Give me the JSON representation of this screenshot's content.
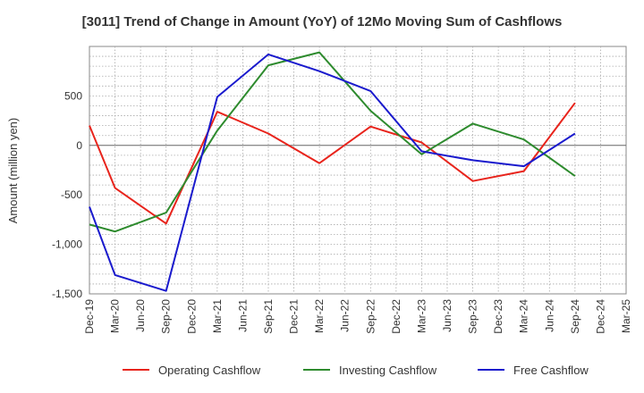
{
  "chart_data": {
    "type": "line",
    "title": "[3011]  Trend of Change in Amount (YoY) of 12Mo Moving Sum of Cashflows",
    "xlabel": "",
    "ylabel": "Amount (million yen)",
    "ylim": [
      -1500,
      1000
    ],
    "yticks": [
      500,
      0,
      -500,
      -1000,
      -1500
    ],
    "ytick_labels": [
      "500",
      "0",
      "-500",
      "-1,000",
      "-1,500"
    ],
    "categories": [
      "Dec-19",
      "Mar-20",
      "Jun-20",
      "Sep-20",
      "Dec-20",
      "Mar-21",
      "Jun-21",
      "Sep-21",
      "Dec-21",
      "Mar-22",
      "Jun-22",
      "Sep-22",
      "Dec-22",
      "Mar-23",
      "Jun-23",
      "Sep-23",
      "Dec-23",
      "Mar-24",
      "Jun-24",
      "Sep-24",
      "Dec-24",
      "Mar-25"
    ],
    "grid": true,
    "legend_position": "bottom",
    "series": [
      {
        "name": "Operating Cashflow",
        "color": "#e8241c",
        "values": [
          200,
          -430,
          null,
          -790,
          null,
          340,
          null,
          120,
          null,
          -180,
          null,
          190,
          null,
          30,
          null,
          -360,
          null,
          -260,
          null,
          430,
          null,
          null
        ]
      },
      {
        "name": "Investing Cashflow",
        "color": "#2e8b2e",
        "values": [
          -800,
          -870,
          null,
          -680,
          null,
          150,
          null,
          810,
          null,
          940,
          null,
          350,
          null,
          -90,
          null,
          220,
          null,
          60,
          null,
          -310,
          null,
          null
        ]
      },
      {
        "name": "Free Cashflow",
        "color": "#1a1acd",
        "values": [
          -620,
          -1310,
          null,
          -1470,
          null,
          490,
          null,
          920,
          null,
          750,
          null,
          550,
          null,
          -60,
          null,
          -150,
          null,
          -210,
          null,
          120,
          null,
          null
        ]
      }
    ]
  }
}
